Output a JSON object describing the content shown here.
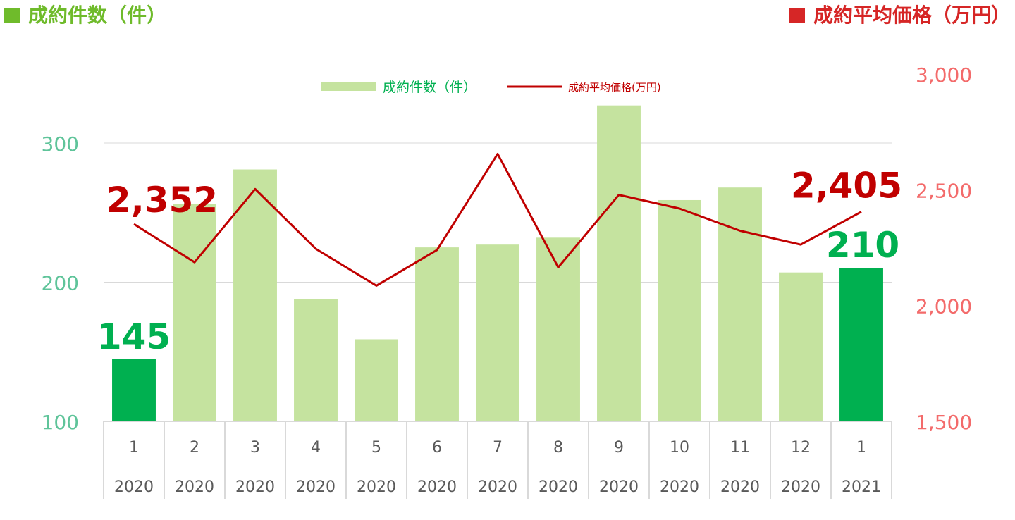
{
  "header": {
    "left_title": "成約件数（件）",
    "right_title": "成約平均価格（万円）"
  },
  "colors": {
    "bar_light": "#c5e39f",
    "bar_dark": "#00b050",
    "left_title": "#6fbb2b",
    "left_axis": "#5fc49a",
    "line": "#c00000",
    "right_title": "#d62626",
    "right_axis": "#f36b6b",
    "grid": "#d9d9d9",
    "category_text": "#595959"
  },
  "chart_data": {
    "type": "bar",
    "categories": [
      "1",
      "2",
      "3",
      "4",
      "5",
      "6",
      "7",
      "8",
      "9",
      "10",
      "11",
      "12",
      "1"
    ],
    "years": [
      "2020",
      "2020",
      "2020",
      "2020",
      "2020",
      "2020",
      "2020",
      "2020",
      "2020",
      "2020",
      "2020",
      "2020",
      "2021"
    ],
    "series": [
      {
        "name": "成約件数（件）",
        "type": "bar",
        "axis": "left",
        "values": [
          145,
          256,
          281,
          188,
          159,
          225,
          227,
          232,
          327,
          259,
          268,
          207,
          210
        ],
        "highlight_indices": [
          0,
          12
        ]
      },
      {
        "name": "成約平均価格(万円)",
        "type": "line",
        "axis": "right",
        "values": [
          2352,
          2187,
          2503,
          2245,
          2086,
          2240,
          2655,
          2165,
          2478,
          2419,
          2323,
          2263,
          2405
        ]
      }
    ],
    "y_left": {
      "ylim": [
        100,
        300
      ],
      "ticks": [
        "100",
        "200",
        "300"
      ]
    },
    "y_right": {
      "ylim": [
        1500,
        3000
      ],
      "ticks": [
        "1,500",
        "2,000",
        "2,500",
        "3,000"
      ]
    },
    "data_labels": {
      "first_bar": "145",
      "last_bar": "210",
      "first_line": "2,352",
      "last_line": "2,405"
    },
    "legend": {
      "placement": "top-center",
      "bar_label": "成約件数（件）",
      "line_label": "成約平均価格(万円)"
    },
    "grid": true
  }
}
